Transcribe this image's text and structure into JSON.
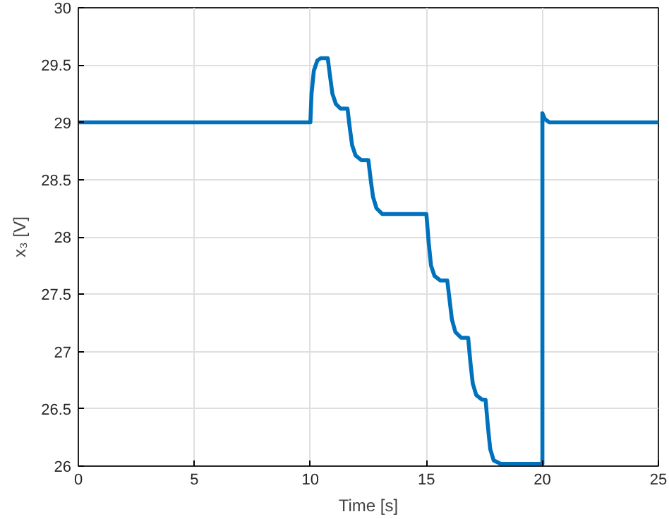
{
  "chart_data": {
    "type": "line",
    "xlabel": "Time [s]",
    "ylabel": "x₃ [V]",
    "x": [
      0,
      10,
      10.05,
      10.15,
      10.3,
      10.45,
      10.75,
      10.85,
      10.95,
      11.1,
      11.3,
      11.6,
      11.7,
      11.8,
      11.95,
      12.2,
      12.5,
      12.6,
      12.7,
      12.85,
      13.1,
      15,
      15.1,
      15.2,
      15.35,
      15.6,
      15.9,
      16.0,
      16.1,
      16.25,
      16.5,
      16.8,
      16.9,
      17.0,
      17.15,
      17.4,
      17.55,
      17.65,
      17.75,
      17.9,
      18.2,
      20,
      20,
      20.1,
      20.3,
      25
    ],
    "series": [
      {
        "color": "#0072bd",
        "values": [
          29,
          29,
          29.25,
          29.45,
          29.54,
          29.56,
          29.56,
          29.4,
          29.25,
          29.16,
          29.12,
          29.12,
          28.95,
          28.8,
          28.71,
          28.67,
          28.67,
          28.5,
          28.35,
          28.25,
          28.2,
          28.2,
          27.95,
          27.75,
          27.66,
          27.62,
          27.62,
          27.45,
          27.28,
          27.17,
          27.12,
          27.12,
          26.9,
          26.72,
          26.62,
          26.58,
          26.58,
          26.35,
          26.15,
          26.05,
          26.02,
          26.02,
          29.08,
          29.03,
          29.0,
          29.0
        ]
      }
    ],
    "xlim": [
      0,
      25
    ],
    "ylim": [
      26,
      30
    ],
    "xticks": [
      0,
      5,
      10,
      15,
      20,
      25
    ],
    "yticks": [
      26,
      26.5,
      27,
      27.5,
      28,
      28.5,
      29,
      29.5,
      30
    ],
    "grid": true,
    "line_style": "solid",
    "marker": "none"
  }
}
